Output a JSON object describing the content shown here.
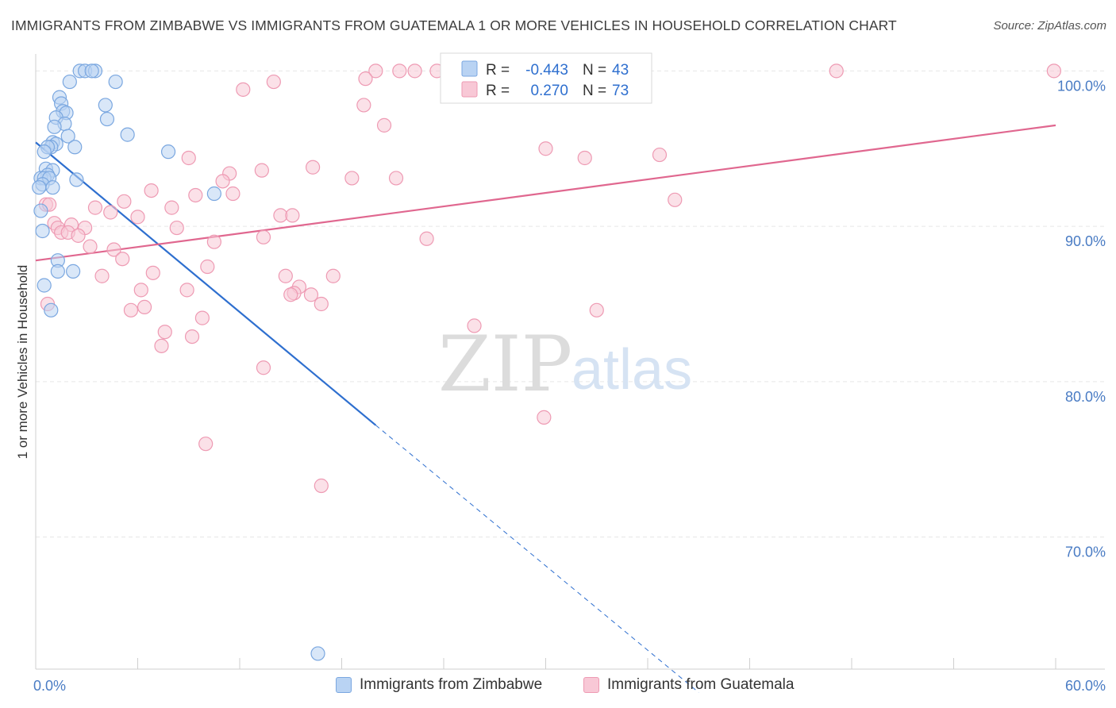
{
  "header": {
    "title": "IMMIGRANTS FROM ZIMBABWE VS IMMIGRANTS FROM GUATEMALA 1 OR MORE VEHICLES IN HOUSEHOLD CORRELATION CHART",
    "source": "Source: ZipAtlas.com"
  },
  "watermark": {
    "zip": "ZIP",
    "atlas": "atlas"
  },
  "colors": {
    "zimbabwe_fill": "#b9d3f3",
    "zimbabwe_stroke": "#7aa7e0",
    "zimbabwe_line": "#2e6fcf",
    "guatemala_fill": "#f8c8d6",
    "guatemala_stroke": "#ee9ab3",
    "guatemala_line": "#e0678f",
    "axis_text": "#4a7cc4",
    "grid": "#e6e6e6"
  },
  "legend_box": {
    "rows": [
      {
        "r_label": "R = ",
        "r_value": "-0.443",
        "n_label": "N = ",
        "n_value": "43"
      },
      {
        "r_label": "R = ",
        "r_value": "0.270",
        "n_label": "N = ",
        "n_value": "73"
      }
    ]
  },
  "chart_data": {
    "type": "scatter",
    "title": "IMMIGRANTS FROM ZIMBABWE VS IMMIGRANTS FROM GUATEMALA 1 OR MORE VEHICLES IN HOUSEHOLD CORRELATION CHART",
    "xlabel": "",
    "ylabel": "1 or more Vehicles in Household",
    "xlim": [
      0,
      60
    ],
    "ylim": [
      61.5,
      101.5
    ],
    "x_tick_labels": [
      {
        "value": 0,
        "label": "0.0%"
      },
      {
        "value": 60,
        "label": "60.0%"
      }
    ],
    "y_ticks": [
      {
        "value": 70,
        "label": "70.0%"
      },
      {
        "value": 80,
        "label": "80.0%"
      },
      {
        "value": 90,
        "label": "90.0%"
      },
      {
        "value": 100,
        "label": "100.0%"
      }
    ],
    "grid": true,
    "legend_placement": "top-center",
    "series": [
      {
        "name": "Immigrants from Zimbabwe",
        "r": -0.443,
        "n": 43,
        "trend": {
          "x_start": 0.0,
          "y_start": 95.4,
          "x_solid_end": 20.0,
          "y_solid_end": 77.2,
          "x_dashed_end": 39.0,
          "y_dashed_end": 60.0
        },
        "points": [
          [
            2.6,
            100.0
          ],
          [
            2.9,
            100.0
          ],
          [
            3.5,
            100.0
          ],
          [
            3.3,
            100.0
          ],
          [
            2.0,
            99.3
          ],
          [
            4.7,
            99.3
          ],
          [
            1.4,
            98.3
          ],
          [
            1.5,
            97.9
          ],
          [
            4.1,
            97.8
          ],
          [
            1.6,
            97.4
          ],
          [
            1.8,
            97.3
          ],
          [
            1.2,
            97.0
          ],
          [
            4.2,
            96.9
          ],
          [
            1.7,
            96.6
          ],
          [
            1.1,
            96.4
          ],
          [
            5.4,
            95.9
          ],
          [
            1.9,
            95.8
          ],
          [
            1.0,
            95.4
          ],
          [
            1.2,
            95.3
          ],
          [
            0.9,
            95.1
          ],
          [
            0.7,
            95.1
          ],
          [
            2.3,
            95.1
          ],
          [
            7.8,
            94.8
          ],
          [
            0.5,
            94.8
          ],
          [
            0.6,
            93.7
          ],
          [
            1.0,
            93.6
          ],
          [
            0.7,
            93.3
          ],
          [
            0.3,
            93.1
          ],
          [
            0.5,
            93.1
          ],
          [
            0.8,
            93.1
          ],
          [
            2.4,
            93.0
          ],
          [
            0.4,
            92.7
          ],
          [
            0.2,
            92.5
          ],
          [
            1.0,
            92.5
          ],
          [
            10.5,
            92.1
          ],
          [
            0.3,
            91.0
          ],
          [
            0.4,
            89.7
          ],
          [
            1.3,
            87.8
          ],
          [
            1.3,
            87.1
          ],
          [
            2.2,
            87.1
          ],
          [
            0.5,
            86.2
          ],
          [
            0.9,
            84.6
          ],
          [
            16.6,
            62.5
          ]
        ]
      },
      {
        "name": "Immigrants from Guatemala",
        "r": 0.27,
        "n": 73,
        "trend": {
          "x_start": 0.0,
          "y_start": 87.8,
          "x_end": 60.0,
          "y_end": 96.5
        },
        "points": [
          [
            20.0,
            100.0
          ],
          [
            21.4,
            100.0
          ],
          [
            22.3,
            100.0
          ],
          [
            23.6,
            100.0
          ],
          [
            47.1,
            100.0
          ],
          [
            59.9,
            100.0
          ],
          [
            19.4,
            99.5
          ],
          [
            14.0,
            99.3
          ],
          [
            12.2,
            98.8
          ],
          [
            19.3,
            97.8
          ],
          [
            20.5,
            96.5
          ],
          [
            30.0,
            95.0
          ],
          [
            9.0,
            94.4
          ],
          [
            32.3,
            94.4
          ],
          [
            36.7,
            94.6
          ],
          [
            16.3,
            93.8
          ],
          [
            13.3,
            93.6
          ],
          [
            11.4,
            93.4
          ],
          [
            18.6,
            93.1
          ],
          [
            21.2,
            93.1
          ],
          [
            11.0,
            92.9
          ],
          [
            6.8,
            92.3
          ],
          [
            11.6,
            92.1
          ],
          [
            9.4,
            92.0
          ],
          [
            37.6,
            91.7
          ],
          [
            5.2,
            91.6
          ],
          [
            0.6,
            91.4
          ],
          [
            0.8,
            91.4
          ],
          [
            3.5,
            91.2
          ],
          [
            8.0,
            91.2
          ],
          [
            4.4,
            90.9
          ],
          [
            14.4,
            90.7
          ],
          [
            15.1,
            90.7
          ],
          [
            6.0,
            90.6
          ],
          [
            1.1,
            90.2
          ],
          [
            2.1,
            90.1
          ],
          [
            1.3,
            89.9
          ],
          [
            2.9,
            89.9
          ],
          [
            8.3,
            89.9
          ],
          [
            1.5,
            89.6
          ],
          [
            1.9,
            89.6
          ],
          [
            2.5,
            89.4
          ],
          [
            13.4,
            89.3
          ],
          [
            23.0,
            89.2
          ],
          [
            10.5,
            89.0
          ],
          [
            3.2,
            88.7
          ],
          [
            4.6,
            88.5
          ],
          [
            5.1,
            87.9
          ],
          [
            10.1,
            87.4
          ],
          [
            6.9,
            87.0
          ],
          [
            3.9,
            86.8
          ],
          [
            14.7,
            86.8
          ],
          [
            17.5,
            86.8
          ],
          [
            15.5,
            86.1
          ],
          [
            8.9,
            85.9
          ],
          [
            6.2,
            85.9
          ],
          [
            15.2,
            85.7
          ],
          [
            15.0,
            85.6
          ],
          [
            16.2,
            85.6
          ],
          [
            16.8,
            85.0
          ],
          [
            6.4,
            84.8
          ],
          [
            33.0,
            84.6
          ],
          [
            5.6,
            84.6
          ],
          [
            9.8,
            84.1
          ],
          [
            25.8,
            83.6
          ],
          [
            7.6,
            83.2
          ],
          [
            9.2,
            82.9
          ],
          [
            7.4,
            82.3
          ],
          [
            13.4,
            80.9
          ],
          [
            29.9,
            77.7
          ],
          [
            10.0,
            76.0
          ],
          [
            16.8,
            73.3
          ],
          [
            0.7,
            85.0
          ]
        ]
      }
    ]
  },
  "bottom_legend": [
    {
      "label": "Immigrants from Zimbabwe"
    },
    {
      "label": "Immigrants from Guatemala"
    }
  ]
}
